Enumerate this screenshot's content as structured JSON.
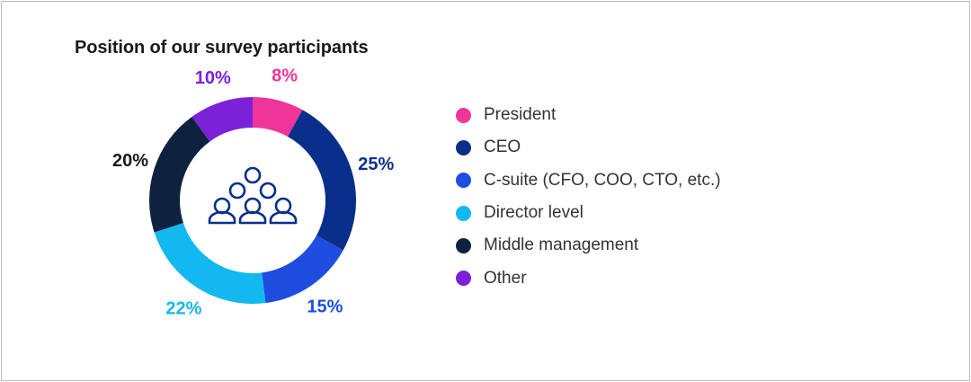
{
  "chart_data": {
    "type": "pie",
    "variant": "donut",
    "title": "Position of our survey participants",
    "categories": [
      "President",
      "CEO",
      "C-suite (CFO, COO, CTO, etc.)",
      "Director level",
      "Middle management",
      "Other"
    ],
    "values": [
      8,
      25,
      15,
      22,
      20,
      10
    ],
    "value_labels": [
      "8%",
      "25%",
      "15%",
      "22%",
      "20%",
      "10%"
    ],
    "colors": [
      "#f0359a",
      "#0a2f8a",
      "#1f4de0",
      "#13b8f0",
      "#0e2240",
      "#7b22d8"
    ],
    "legend_position": "right",
    "center_icon": "people-group-icon"
  }
}
